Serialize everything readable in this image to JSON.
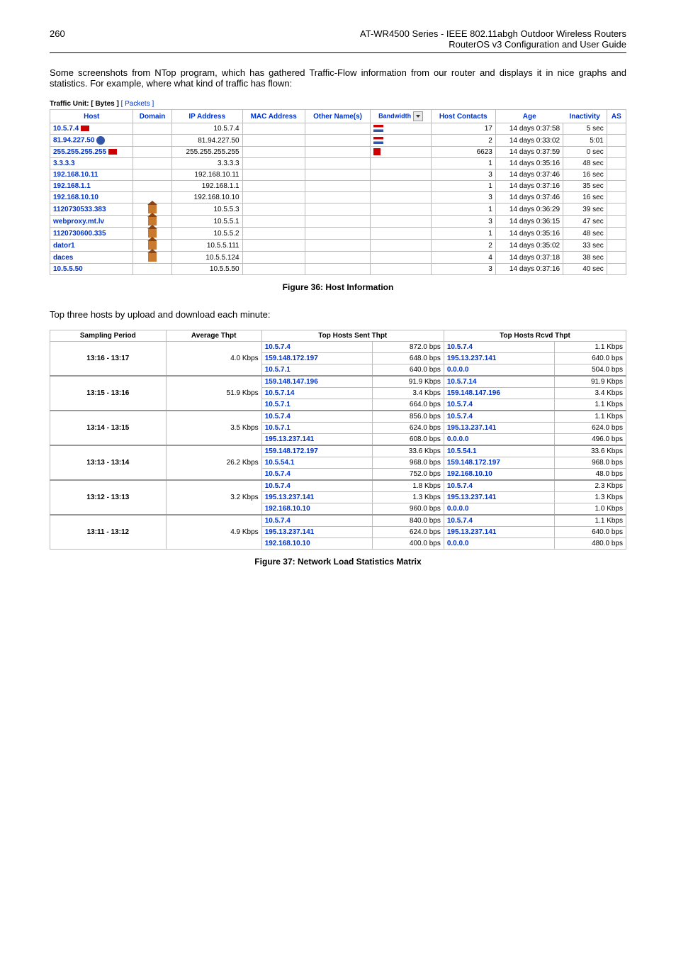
{
  "header": {
    "page_number": "260",
    "title_line1": "AT-WR4500 Series - IEEE 802.11abgh Outdoor Wireless Routers",
    "title_line2": "RouterOS v3 Configuration and User Guide"
  },
  "intro_text": "Some screenshots from NTop program, which has gathered Traffic-Flow information from our router and displays it in nice graphs and statistics. For example, where what kind of traffic has flown:",
  "traffic_unit": {
    "label": "Traffic Unit:",
    "bytes": "[ Bytes ]",
    "packets": "[ Packets ]"
  },
  "host_table": {
    "headers": [
      "Host",
      "Domain",
      "IP Address",
      "MAC Address",
      "Other Name(s)",
      "Bandwidth",
      "Host Contacts",
      "Age",
      "Inactivity",
      "AS"
    ],
    "rows": [
      {
        "host": "10.5.7.4",
        "icon": "flag",
        "ip": "10.5.7.4",
        "bw": "bars",
        "contacts": "17",
        "age": "14 days 0:37:58",
        "inact": "5 sec"
      },
      {
        "host": "81.94.227.50",
        "icon": "circle",
        "ip": "81.94.227.50",
        "bw": "bars",
        "contacts": "2",
        "age": "14 days 0:33:02",
        "inact": "5:01"
      },
      {
        "host": "255.255.255.255",
        "icon": "flag",
        "ip": "255.255.255.255",
        "bw": "dots",
        "contacts": "6623",
        "age": "14 days 0:37:59",
        "inact": "0 sec"
      },
      {
        "host": "3.3.3.3",
        "ip": "3.3.3.3",
        "contacts": "1",
        "age": "14 days 0:35:16",
        "inact": "48 sec"
      },
      {
        "host": "192.168.10.11",
        "ip": "192.168.10.11",
        "contacts": "3",
        "age": "14 days 0:37:46",
        "inact": "16 sec"
      },
      {
        "host": "192.168.1.1",
        "ip": "192.168.1.1",
        "contacts": "1",
        "age": "14 days 0:37:16",
        "inact": "35 sec"
      },
      {
        "host": "192.168.10.10",
        "ip": "192.168.10.10",
        "contacts": "3",
        "age": "14 days 0:37:46",
        "inact": "16 sec"
      },
      {
        "host": "1120730533.383",
        "domain_icon": "house",
        "ip": "10.5.5.3",
        "contacts": "1",
        "age": "14 days 0:36:29",
        "inact": "39 sec"
      },
      {
        "host": "webproxy.mt.lv",
        "domain_icon": "house",
        "ip": "10.5.5.1",
        "contacts": "3",
        "age": "14 days 0:36:15",
        "inact": "47 sec"
      },
      {
        "host": "1120730600.335",
        "domain_icon": "house",
        "ip": "10.5.5.2",
        "contacts": "1",
        "age": "14 days 0:35:16",
        "inact": "48 sec"
      },
      {
        "host": "dator1",
        "domain_icon": "house",
        "ip": "10.5.5.111",
        "contacts": "2",
        "age": "14 days 0:35:02",
        "inact": "33 sec"
      },
      {
        "host": "daces",
        "domain_icon": "house",
        "ip": "10.5.5.124",
        "contacts": "4",
        "age": "14 days 0:37:18",
        "inact": "38 sec"
      },
      {
        "host": "10.5.5.50",
        "ip": "10.5.5.50",
        "contacts": "3",
        "age": "14 days 0:37:16",
        "inact": "40 sec"
      }
    ]
  },
  "fig36": "Figure 36: Host Information",
  "mid_text": "Top three hosts by upload and download each minute:",
  "thpt_headers": [
    "Sampling Period",
    "Average Thpt",
    "Top Hosts Sent Thpt",
    "Top Hosts Rcvd Thpt"
  ],
  "thpt_groups": [
    {
      "period": "13:16 - 13:17",
      "avg": "4.0 Kbps",
      "sent": [
        [
          "10.5.7.4",
          "872.0 bps"
        ],
        [
          "159.148.172.197",
          "648.0 bps"
        ],
        [
          "10.5.7.1",
          "640.0 bps"
        ]
      ],
      "rcvd": [
        [
          "10.5.7.4",
          "1.1 Kbps"
        ],
        [
          "195.13.237.141",
          "640.0 bps"
        ],
        [
          "0.0.0.0",
          "504.0 bps"
        ]
      ]
    },
    {
      "period": "13:15 - 13:16",
      "avg": "51.9 Kbps",
      "sent": [
        [
          "159.148.147.196",
          "91.9 Kbps"
        ],
        [
          "10.5.7.14",
          "3.4 Kbps"
        ],
        [
          "10.5.7.1",
          "664.0 bps"
        ]
      ],
      "rcvd": [
        [
          "10.5.7.14",
          "91.9 Kbps"
        ],
        [
          "159.148.147.196",
          "3.4 Kbps"
        ],
        [
          "10.5.7.4",
          "1.1 Kbps"
        ]
      ]
    },
    {
      "period": "13:14 - 13:15",
      "avg": "3.5 Kbps",
      "sent": [
        [
          "10.5.7.4",
          "856.0 bps"
        ],
        [
          "10.5.7.1",
          "624.0 bps"
        ],
        [
          "195.13.237.141",
          "608.0 bps"
        ]
      ],
      "rcvd": [
        [
          "10.5.7.4",
          "1.1 Kbps"
        ],
        [
          "195.13.237.141",
          "624.0 bps"
        ],
        [
          "0.0.0.0",
          "496.0 bps"
        ]
      ]
    },
    {
      "period": "13:13 - 13:14",
      "avg": "26.2 Kbps",
      "sent": [
        [
          "159.148.172.197",
          "33.6 Kbps"
        ],
        [
          "10.5.54.1",
          "968.0 bps"
        ],
        [
          "10.5.7.4",
          "752.0 bps"
        ]
      ],
      "rcvd": [
        [
          "10.5.54.1",
          "33.6 Kbps"
        ],
        [
          "159.148.172.197",
          "968.0 bps"
        ],
        [
          "192.168.10.10",
          "48.0 bps"
        ]
      ]
    },
    {
      "period": "13:12 - 13:13",
      "avg": "3.2 Kbps",
      "sent": [
        [
          "10.5.7.4",
          "1.8 Kbps"
        ],
        [
          "195.13.237.141",
          "1.3 Kbps"
        ],
        [
          "192.168.10.10",
          "960.0 bps"
        ]
      ],
      "rcvd": [
        [
          "10.5.7.4",
          "2.3 Kbps"
        ],
        [
          "195.13.237.141",
          "1.3 Kbps"
        ],
        [
          "0.0.0.0",
          "1.0 Kbps"
        ]
      ]
    },
    {
      "period": "13:11 - 13:12",
      "avg": "4.9 Kbps",
      "sent": [
        [
          "10.5.7.4",
          "840.0 bps"
        ],
        [
          "195.13.237.141",
          "624.0 bps"
        ],
        [
          "192.168.10.10",
          "400.0 bps"
        ]
      ],
      "rcvd": [
        [
          "10.5.7.4",
          "1.1 Kbps"
        ],
        [
          "195.13.237.141",
          "640.0 bps"
        ],
        [
          "0.0.0.0",
          "480.0 bps"
        ]
      ]
    }
  ],
  "fig37": "Figure 37: Network Load Statistics Matrix"
}
